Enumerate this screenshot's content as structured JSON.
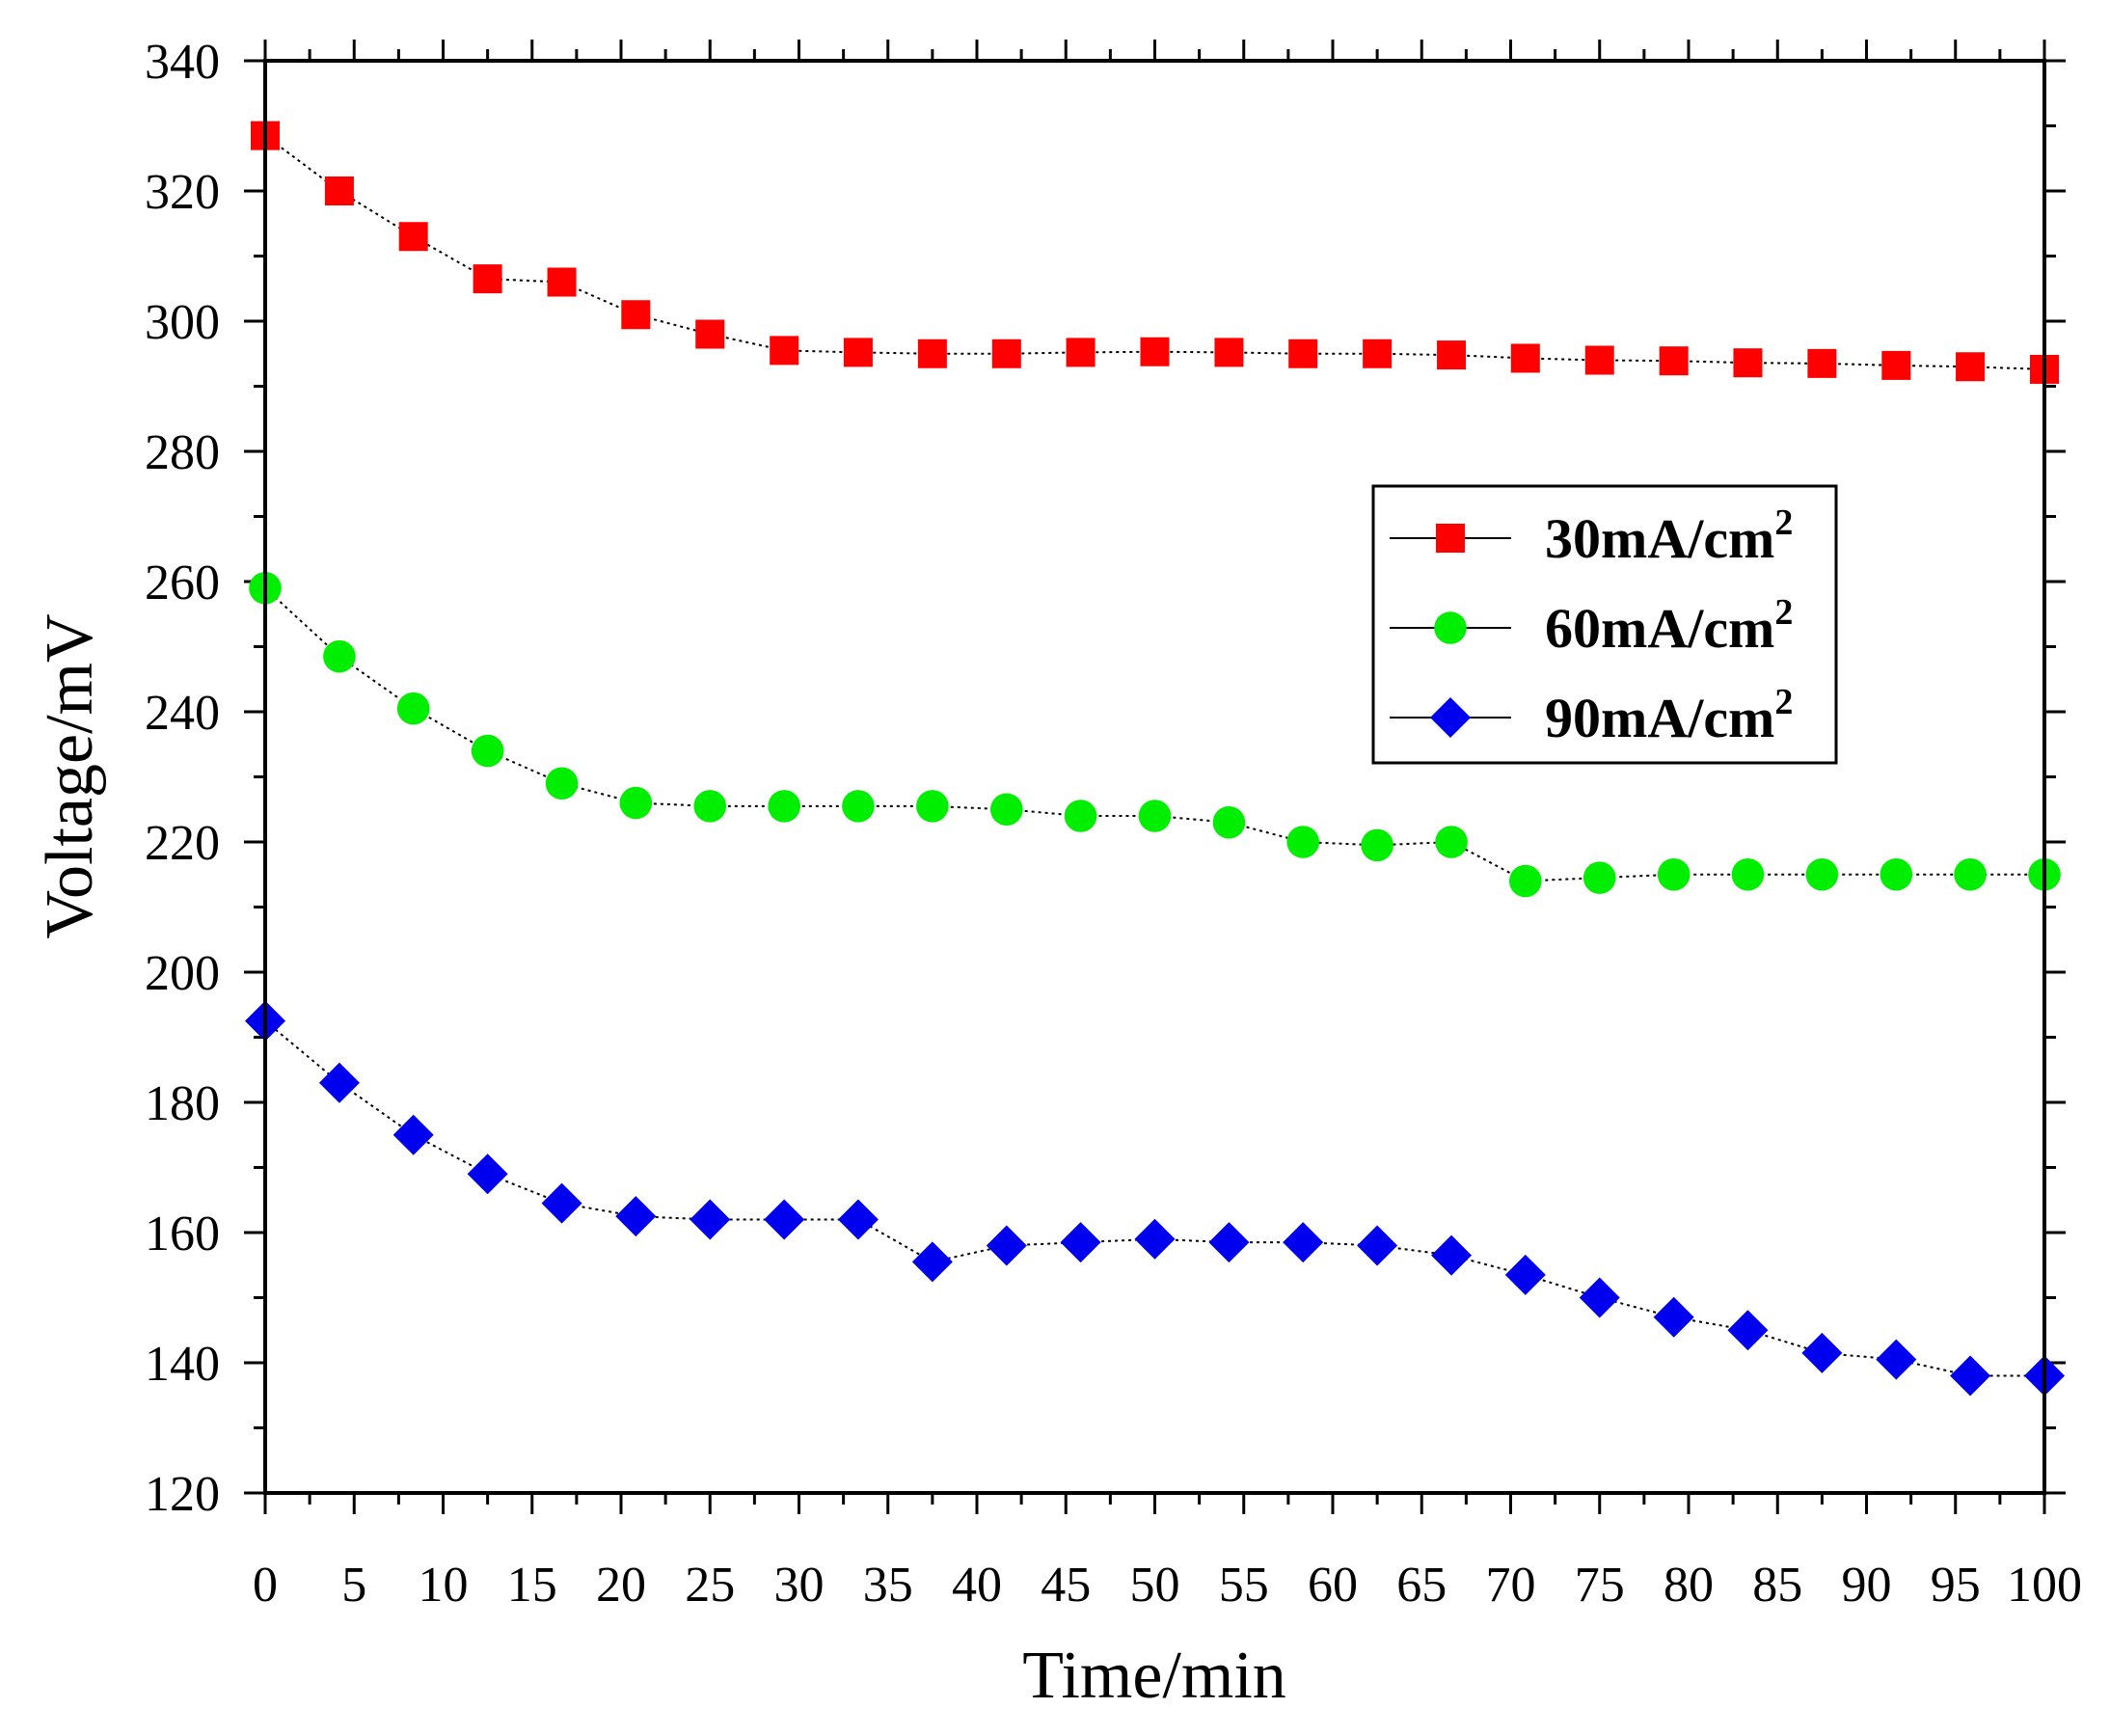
{
  "chart_data": {
    "type": "line",
    "title": "",
    "xlabel": "Time/min",
    "ylabel": "Voltage/mV",
    "xlim": [
      0,
      100
    ],
    "ylim": [
      120,
      340
    ],
    "x_ticks": [
      0,
      5,
      10,
      15,
      20,
      25,
      30,
      35,
      40,
      45,
      50,
      55,
      60,
      65,
      70,
      75,
      80,
      85,
      90,
      95,
      100
    ],
    "y_ticks": [
      120,
      140,
      160,
      180,
      200,
      220,
      240,
      260,
      280,
      300,
      320,
      340
    ],
    "grid": false,
    "legend_position": "upper-right",
    "x": [
      0,
      4.17,
      8.33,
      12.5,
      16.67,
      20.83,
      25,
      29.17,
      33.33,
      37.5,
      41.67,
      45.83,
      50,
      54.17,
      58.33,
      62.5,
      66.67,
      70.83,
      75,
      79.17,
      83.33,
      87.5,
      91.67,
      95.83,
      100
    ],
    "series": [
      {
        "name": "30mA/cm",
        "name_sup": "2",
        "marker": "square",
        "color": "#ff0000",
        "values": [
          328.5,
          320,
          313,
          306.5,
          306,
          301,
          298,
          295.5,
          295.2,
          295,
          295,
          295.2,
          295.3,
          295.2,
          295,
          295,
          294.8,
          294.3,
          294,
          293.9,
          293.6,
          293.5,
          293.2,
          293,
          292.6
        ]
      },
      {
        "name": "60mA/cm",
        "name_sup": "2",
        "marker": "circle",
        "color": "#00ee00",
        "values": [
          259,
          248.5,
          240.5,
          234,
          229,
          226,
          225.5,
          225.5,
          225.5,
          225.5,
          225,
          224,
          224,
          223,
          220,
          219.5,
          220,
          214,
          214.5,
          215,
          215,
          215,
          215,
          215,
          215
        ]
      },
      {
        "name": "90mA/cm",
        "name_sup": "2",
        "marker": "diamond",
        "color": "#0000ee",
        "values": [
          192.5,
          183,
          175,
          169,
          164.5,
          162.5,
          162,
          162,
          162,
          155.5,
          158,
          158.5,
          159,
          158.5,
          158.5,
          158,
          156.5,
          153.5,
          150,
          147,
          145,
          141.5,
          140.5,
          138,
          138
        ]
      }
    ]
  }
}
